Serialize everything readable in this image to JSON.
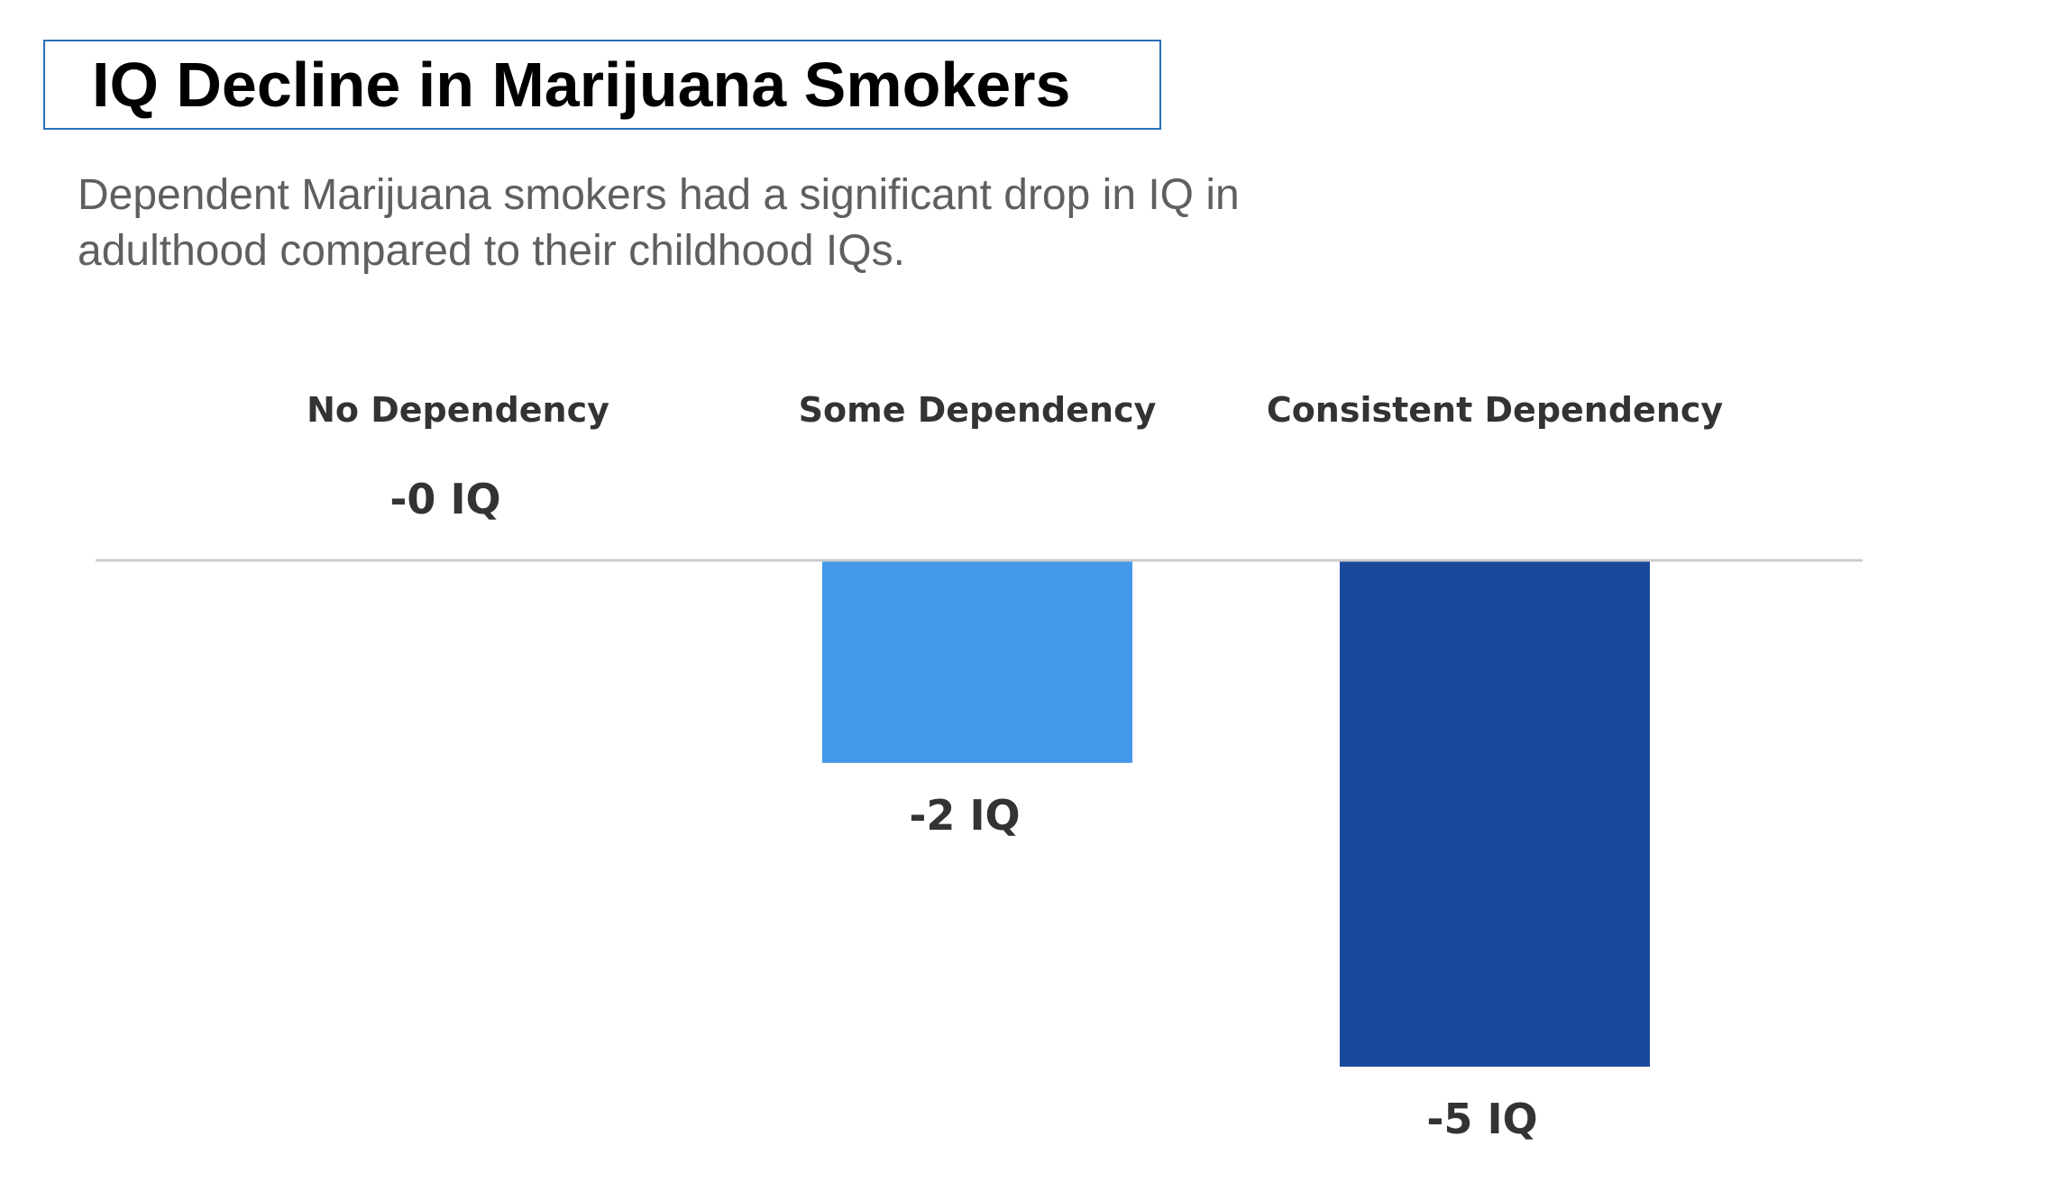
{
  "chart_data": {
    "type": "bar",
    "title": "IQ Decline in Marijuana Smokers",
    "subtitle": "Dependent Marijuana smokers had a significant drop in IQ in adulthood compared to their childhood IQs.",
    "categories": [
      "No Dependency",
      "Some Dependency",
      "Consistent Dependency"
    ],
    "values": [
      0,
      -2,
      -5
    ],
    "data_labels": [
      "-0 IQ",
      "-2 IQ",
      "-5 IQ"
    ],
    "colors": [
      "#4498ea",
      "#4498ea",
      "#19499b"
    ],
    "baseline_color": "#cccccc",
    "ylim": [
      -5,
      0
    ],
    "xlabel": "",
    "ylabel": "",
    "grid": false,
    "legend": "none"
  }
}
